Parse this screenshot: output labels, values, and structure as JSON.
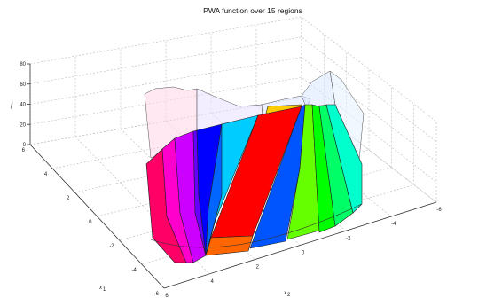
{
  "chart_data": {
    "type": "surface",
    "title": "PWA function over 15 regions",
    "xlabel": "x",
    "xlabel_sub": "1",
    "ylabel": "x",
    "ylabel_sub": "2",
    "zlabel": "f",
    "xlim": [
      -6,
      6
    ],
    "ylim": [
      -6,
      6
    ],
    "zlim": [
      0,
      80
    ],
    "x_ticks": [
      "6",
      "4",
      "2",
      "0",
      "-2",
      "-4",
      "-6"
    ],
    "y_ticks": [
      "6",
      "4",
      "2",
      "0",
      "-2",
      "-4",
      "-6"
    ],
    "z_ticks": [
      "0",
      "20",
      "40",
      "60",
      "80"
    ],
    "grid": true,
    "regions": [
      {
        "index": 1,
        "color": "#ff0066"
      },
      {
        "index": 2,
        "color": "#ff00cc"
      },
      {
        "index": 3,
        "color": "#cc00ff"
      },
      {
        "index": 4,
        "color": "#6600ff"
      },
      {
        "index": 5,
        "color": "#0000ff"
      },
      {
        "index": 6,
        "color": "#0066ff"
      },
      {
        "index": 7,
        "color": "#00ccff"
      },
      {
        "index": 8,
        "color": "#ff6600"
      },
      {
        "index": 9,
        "color": "#ff0000"
      },
      {
        "index": 10,
        "color": "#0055ff"
      },
      {
        "index": 11,
        "color": "#66ff00"
      },
      {
        "index": 12,
        "color": "#00ff00"
      },
      {
        "index": 13,
        "color": "#00ff66"
      },
      {
        "index": 14,
        "color": "#00ffcc"
      },
      {
        "index": 15,
        "color": "#ffcc00"
      }
    ]
  }
}
